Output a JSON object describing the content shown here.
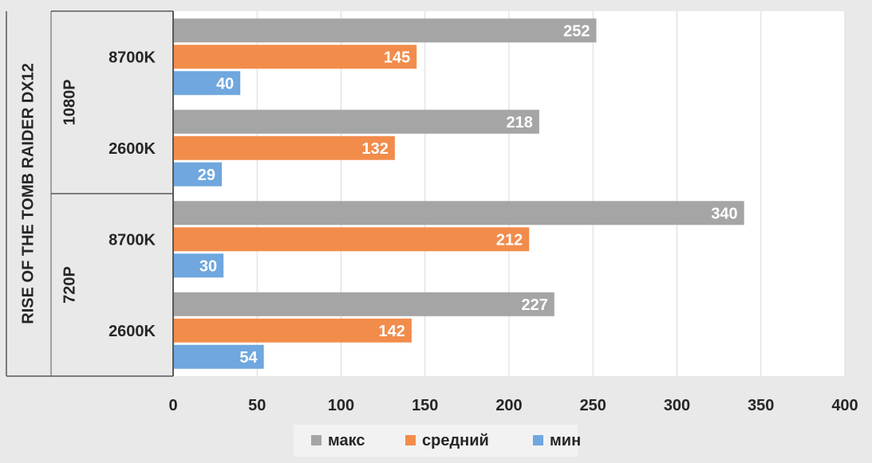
{
  "chart_data": {
    "type": "bar",
    "orientation": "horizontal",
    "group_title": "RISE OF THE TOMB RAIDER  DX12",
    "groups": [
      {
        "name": "1080P",
        "categories": [
          {
            "name": "8700K",
            "values": {
              "макс": 252,
              "средний": 145,
              "мин": 40
            }
          },
          {
            "name": "2600K",
            "values": {
              "макс": 218,
              "средний": 132,
              "мин": 29
            }
          }
        ]
      },
      {
        "name": "720P",
        "categories": [
          {
            "name": "8700K",
            "values": {
              "макс": 340,
              "средний": 212,
              "мин": 30
            }
          },
          {
            "name": "2600K",
            "values": {
              "макс": 227,
              "средний": 142,
              "мин": 54
            }
          }
        ]
      }
    ],
    "series": [
      {
        "name": "макс",
        "color": "#a5a5a5"
      },
      {
        "name": "средний",
        "color": "#f28c4b"
      },
      {
        "name": "мин",
        "color": "#6fa7de"
      }
    ],
    "xlim": [
      0,
      400
    ],
    "xticks": [
      0,
      50,
      100,
      150,
      200,
      250,
      300,
      350,
      400
    ],
    "grid": true,
    "data_labels": true,
    "legend_position": "bottom"
  }
}
